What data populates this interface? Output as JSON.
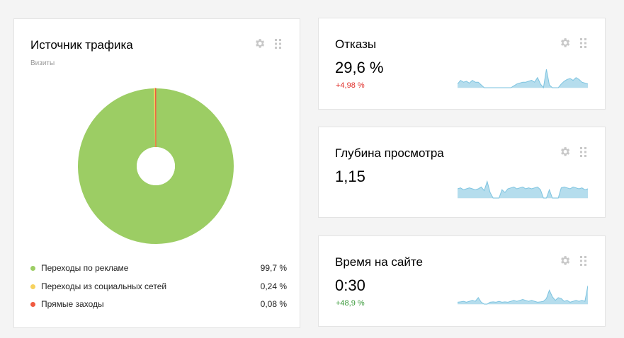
{
  "traffic": {
    "title": "Источник трафика",
    "subtitle": "Визиты"
  },
  "chart_data": {
    "type": "pie",
    "categories": [
      "Переходы по рекламе",
      "Переходы из социальных сетей",
      "Прямые заходы"
    ],
    "values": [
      99.7,
      0.24,
      0.08
    ],
    "value_labels": [
      "99,7 %",
      "0,24 %",
      "0,08 %"
    ],
    "colors": [
      "#9ccd64",
      "#f7d25e",
      "#f05a40"
    ],
    "donut": true,
    "legend_position": "bottom"
  },
  "bounce": {
    "title": "Отказы",
    "value": "29,6 %",
    "delta": "+4,98 %",
    "delta_color": "#e0302b",
    "spark": [
      0.2,
      0.4,
      0.3,
      0.35,
      0.25,
      0.4,
      0.3,
      0.3,
      0.15,
      0,
      0,
      0,
      0,
      0,
      0,
      0,
      0,
      0,
      0,
      0.1,
      0.2,
      0.25,
      0.3,
      0.3,
      0.35,
      0.4,
      0.3,
      0.55,
      0.2,
      0,
      1.0,
      0.15,
      0,
      0,
      0,
      0.2,
      0.35,
      0.45,
      0.5,
      0.4,
      0.55,
      0.45,
      0.3,
      0.25,
      0.2
    ]
  },
  "depth": {
    "title": "Глубина просмотра",
    "value": "1,15",
    "spark": [
      0.5,
      0.55,
      0.45,
      0.5,
      0.55,
      0.5,
      0.45,
      0.5,
      0.6,
      0.4,
      0.9,
      0.3,
      0,
      0,
      0,
      0.45,
      0.3,
      0.5,
      0.55,
      0.6,
      0.5,
      0.55,
      0.6,
      0.5,
      0.55,
      0.5,
      0.55,
      0.6,
      0.45,
      0,
      0,
      0.45,
      0,
      0,
      0,
      0.55,
      0.6,
      0.55,
      0.5,
      0.6,
      0.55,
      0.5,
      0.55,
      0.45,
      0.5
    ]
  },
  "time": {
    "title": "Время на сайте",
    "value": "0:30",
    "delta": "+48,9 %",
    "delta_color": "#3a9a3a",
    "spark": [
      0.1,
      0.12,
      0.15,
      0.1,
      0.15,
      0.2,
      0.15,
      0.35,
      0.1,
      0,
      0,
      0.1,
      0.12,
      0.1,
      0.15,
      0.1,
      0.12,
      0.1,
      0.15,
      0.2,
      0.15,
      0.2,
      0.25,
      0.2,
      0.15,
      0.2,
      0.15,
      0.1,
      0.12,
      0.15,
      0.3,
      0.75,
      0.4,
      0.2,
      0.35,
      0.3,
      0.15,
      0.2,
      0.1,
      0.15,
      0.2,
      0.15,
      0.2,
      0.15,
      1.0
    ]
  },
  "icons": {
    "gear": "gear-icon",
    "grip": "drag-handle-icon"
  },
  "colors": {
    "spark_line": "#7ec4e0",
    "spark_fill": "#b5dded"
  }
}
